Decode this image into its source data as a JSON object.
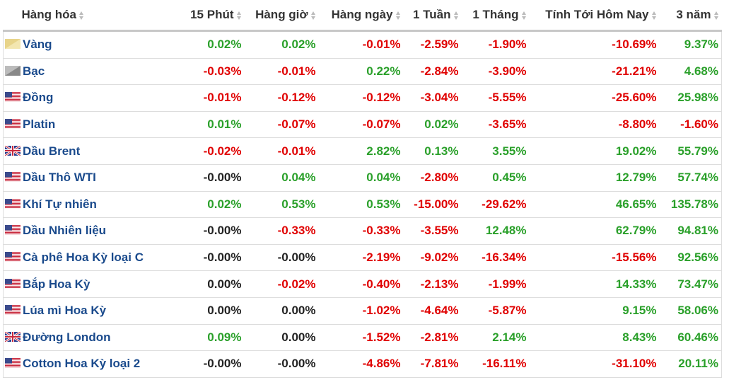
{
  "table": {
    "header": [
      "Hàng hóa",
      "15 Phút",
      "Hàng giờ",
      "Hàng ngày",
      "1 Tuần",
      "1 Tháng",
      "Tính Tới Hôm Nay",
      "3 năm"
    ],
    "rows": [
      [
        "Vàng",
        "0.02%",
        "0.02%",
        "-0.01%",
        "-2.59%",
        "-1.90%",
        "-10.69%",
        "9.37%"
      ],
      [
        "Bạc",
        "-0.03%",
        "-0.01%",
        "0.22%",
        "-2.84%",
        "-3.90%",
        "-21.21%",
        "4.68%"
      ],
      [
        "Đồng",
        "-0.01%",
        "-0.12%",
        "-0.12%",
        "-3.04%",
        "-5.55%",
        "-25.60%",
        "25.98%"
      ],
      [
        "Platin",
        "0.01%",
        "-0.07%",
        "-0.07%",
        "0.02%",
        "-3.65%",
        "-8.80%",
        "-1.60%"
      ],
      [
        "Dầu Brent",
        "-0.02%",
        "-0.01%",
        "2.82%",
        "0.13%",
        "3.55%",
        "19.02%",
        "55.79%"
      ],
      [
        "Dầu Thô WTI",
        "-0.00%",
        "0.04%",
        "0.04%",
        "-2.80%",
        "0.45%",
        "12.79%",
        "57.74%"
      ],
      [
        "Khí Tự nhiên",
        "0.02%",
        "0.53%",
        "0.53%",
        "-15.00%",
        "-29.62%",
        "46.65%",
        "135.78%"
      ],
      [
        "Dầu Nhiên liệu",
        "-0.00%",
        "-0.33%",
        "-0.33%",
        "-3.55%",
        "12.48%",
        "62.79%",
        "94.81%"
      ],
      [
        "Cà phê Hoa Kỳ loại C",
        "-0.00%",
        "-0.00%",
        "-2.19%",
        "-9.02%",
        "-16.34%",
        "-15.56%",
        "92.56%"
      ],
      [
        "Bắp Hoa Kỳ",
        "0.00%",
        "-0.02%",
        "-0.40%",
        "-2.13%",
        "-1.99%",
        "14.33%",
        "73.47%"
      ],
      [
        "Lúa mì Hoa Kỳ",
        "0.00%",
        "0.00%",
        "-1.02%",
        "-4.64%",
        "-5.87%",
        "9.15%",
        "58.06%"
      ],
      [
        "Đường London",
        "0.09%",
        "0.00%",
        "-1.52%",
        "-2.81%",
        "2.14%",
        "8.43%",
        "60.46%"
      ],
      [
        "Cotton Hoa Kỳ loại 2",
        "-0.00%",
        "-0.00%",
        "-4.86%",
        "-7.81%",
        "-16.11%",
        "-31.10%",
        "20.11%"
      ]
    ]
  }
}
